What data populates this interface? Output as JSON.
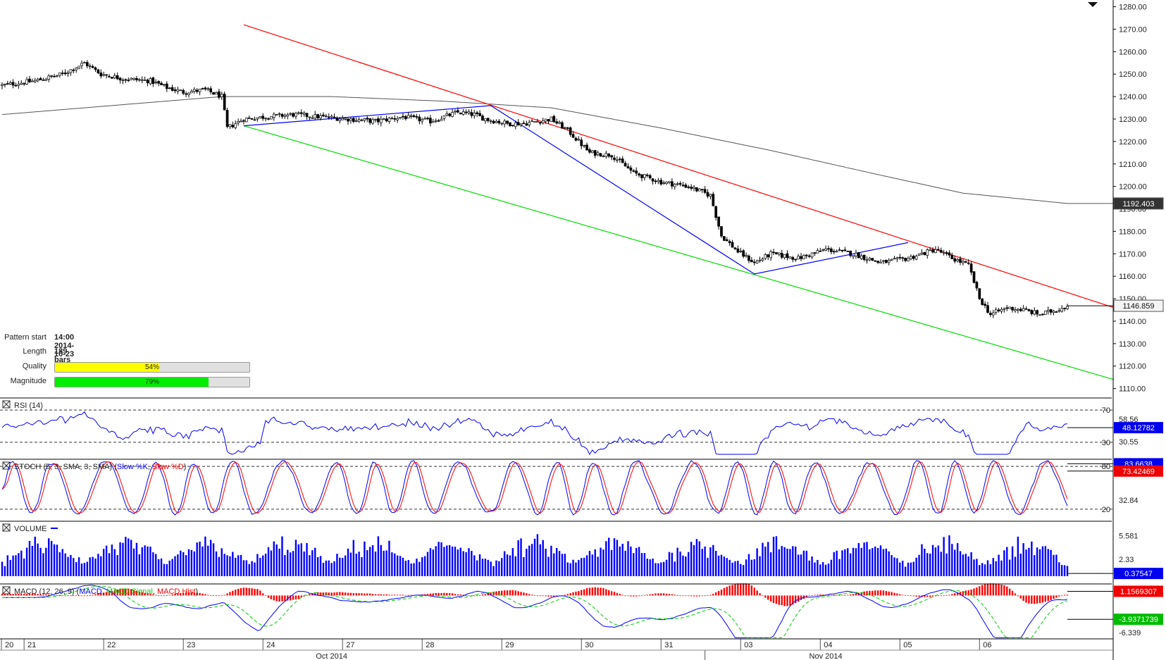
{
  "pattern_info": {
    "pattern_start_label": "Pattern start",
    "pattern_start_value": "14:00 2014-10-23",
    "length_label": "Length",
    "length_value": "189 bars",
    "quality_label": "Quality",
    "quality_pct": 54,
    "quality_text": "54%",
    "quality_color": "#ffff00",
    "magnitude_label": "Magnitude",
    "magnitude_pct": 79,
    "magnitude_text": "79%",
    "magnitude_color": "#00ee00"
  },
  "chart_data": {
    "type": "candlestick",
    "price_axis": {
      "ticks": [
        "1280.00",
        "1270.00",
        "1260.00",
        "1250.00",
        "1240.00",
        "1230.00",
        "1220.00",
        "1210.00",
        "1200.00",
        "1190.00",
        "1180.00",
        "1170.00",
        "1160.00",
        "1150.00",
        "1140.00",
        "1130.00",
        "1120.00",
        "1110.00"
      ],
      "ylim": [
        1108,
        1283
      ]
    },
    "price_tags": [
      {
        "text": "1192.403",
        "value": 1192.403,
        "style": "dark"
      },
      {
        "text": "1146.859",
        "value": 1146.859,
        "style": "light"
      }
    ],
    "x_axis": {
      "day_labels": [
        "20",
        "21",
        "22",
        "23",
        "24",
        "27",
        "28",
        "29",
        "30",
        "31",
        "03",
        "04",
        "05",
        "06"
      ],
      "month_labels": [
        "Oct 2014",
        "Nov 2014"
      ]
    },
    "close_path": [
      [
        0,
        1245
      ],
      [
        12,
        1247
      ],
      [
        22,
        1250
      ],
      [
        30,
        1255
      ],
      [
        36,
        1250
      ],
      [
        44,
        1248
      ],
      [
        54,
        1247
      ],
      [
        60,
        1244
      ],
      [
        66,
        1242
      ],
      [
        74,
        1243
      ],
      [
        80,
        1240
      ],
      [
        82,
        1226
      ],
      [
        88,
        1230
      ],
      [
        96,
        1231
      ],
      [
        106,
        1232
      ],
      [
        116,
        1231
      ],
      [
        126,
        1230
      ],
      [
        136,
        1229
      ],
      [
        146,
        1231
      ],
      [
        156,
        1229
      ],
      [
        166,
        1233
      ],
      [
        172,
        1232
      ],
      [
        176,
        1230
      ],
      [
        184,
        1228
      ],
      [
        190,
        1228
      ],
      [
        200,
        1230
      ],
      [
        206,
        1225
      ],
      [
        214,
        1215
      ],
      [
        222,
        1214
      ],
      [
        230,
        1206
      ],
      [
        240,
        1202
      ],
      [
        250,
        1200
      ],
      [
        258,
        1196
      ],
      [
        262,
        1178
      ],
      [
        268,
        1171
      ],
      [
        274,
        1166
      ],
      [
        280,
        1170
      ],
      [
        290,
        1168
      ],
      [
        300,
        1172
      ],
      [
        310,
        1170
      ],
      [
        320,
        1166
      ],
      [
        330,
        1168
      ],
      [
        340,
        1172
      ],
      [
        346,
        1168
      ],
      [
        352,
        1165
      ],
      [
        356,
        1150
      ],
      [
        360,
        1143
      ],
      [
        366,
        1146
      ],
      [
        372,
        1145
      ],
      [
        378,
        1143
      ],
      [
        384,
        1145
      ],
      [
        388,
        1147
      ]
    ],
    "sma_path": [
      [
        0,
        1232
      ],
      [
        40,
        1236
      ],
      [
        80,
        1240
      ],
      [
        120,
        1240
      ],
      [
        160,
        1238
      ],
      [
        200,
        1235
      ],
      [
        240,
        1226
      ],
      [
        280,
        1216
      ],
      [
        320,
        1205
      ],
      [
        350,
        1197
      ],
      [
        388,
        1192.4
      ]
    ],
    "trendlines": [
      {
        "name": "resistance",
        "color": "#ff0000",
        "points": [
          [
            88,
            1272
          ],
          [
            405,
            1146
          ]
        ]
      },
      {
        "name": "support",
        "color": "#00dd00",
        "points": [
          [
            88,
            1227
          ],
          [
            405,
            1114
          ]
        ]
      },
      {
        "name": "zigzag",
        "color": "#0000ff",
        "points": [
          [
            88,
            1227
          ],
          [
            178,
            1236
          ],
          [
            274,
            1161
          ],
          [
            330,
            1175
          ]
        ]
      }
    ],
    "bar_count": 389,
    "panels": [
      {
        "name": "rsi",
        "label": "RSI (14)",
        "levels": [
          70,
          30
        ],
        "level_labels": [
          "70",
          "30"
        ],
        "axis_labels": [
          "58.56",
          "30.55"
        ],
        "last_tag": "48.12782",
        "ylim": [
          15,
          85
        ]
      },
      {
        "name": "stoch",
        "label": "STOCH (5, 3, SMA, 3, SMA)",
        "k_label": "Slow %K",
        "d_label": "Slow %D",
        "levels": [
          80,
          20
        ],
        "level_labels": [
          "80",
          "20"
        ],
        "axis_labels": [
          "32.84"
        ],
        "top_tag": "83.6638",
        "last_tag": "73.42469",
        "ylim": [
          10,
          90
        ]
      },
      {
        "name": "volume",
        "label": "VOLUME",
        "axis_labels": [
          "5.581",
          "2.33"
        ],
        "last_tag": "0.37547"
      },
      {
        "name": "macd",
        "label": "MACD (12, 26, 9)",
        "macd_label": "MACD",
        "signal_label": "MACD Signal",
        "hist_label": "MACD Hist",
        "axis_labels": [
          "-6.339"
        ],
        "tags": [
          "1.1569307",
          "-3.9371739"
        ],
        "ylim": [
          -7.5,
          2.5
        ]
      }
    ],
    "colors": {
      "up_candle": "#ffffff",
      "down_candle": "#000000",
      "sma": "#555555",
      "rsi": "#0000ff",
      "stoch_k": "#0000ff",
      "stoch_d": "#ff0000",
      "volume": "#0000ff",
      "macd": "#0000ff",
      "signal": "#00cc00",
      "hist": "#ff0000"
    }
  }
}
